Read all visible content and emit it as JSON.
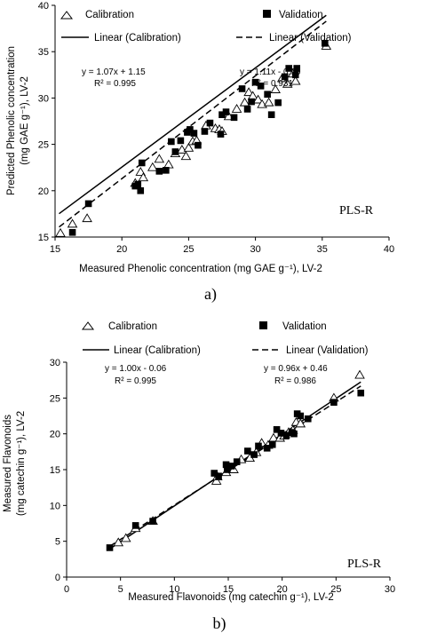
{
  "chart_data": [
    {
      "type": "scatter",
      "xlabel": "Measured Phenolic concentration (mg GAE g⁻¹), LV-2",
      "ylabel_line1": "Predicted Phenolic concentration",
      "ylabel_line2": "(mg GAE g⁻¹), LV-2",
      "xlim": [
        15,
        40
      ],
      "ylim": [
        15,
        40
      ],
      "xticks": [
        "15",
        "20",
        "25",
        "30",
        "35",
        "40"
      ],
      "yticks": [
        "15",
        "20",
        "25",
        "30",
        "35",
        "40"
      ],
      "legend": {
        "calibration": "Calibration",
        "validation": "Validation",
        "linear_calibration": "Linear (Calibration)",
        "linear_validation": "Linear (Validation)"
      },
      "equations": {
        "calibration_eq": "y = 1.07x + 1.15",
        "calibration_r2": "R² = 0.995",
        "validation_eq": "y = 1.11x - 0.90",
        "validation_r2": "R² = 0.931"
      },
      "method_label": "PLS-R",
      "caption": "a)",
      "fits": {
        "calibration": {
          "slope": 1.07,
          "intercept": 1.15,
          "x_range": [
            15.3,
            35.3
          ]
        },
        "validation": {
          "slope": 1.11,
          "intercept": -0.9,
          "x_range": [
            15.3,
            35.3
          ]
        }
      },
      "series": [
        {
          "name": "Calibration",
          "marker": "open-triangle",
          "points": [
            [
              15.4,
              15.4
            ],
            [
              16.3,
              16.4
            ],
            [
              17.4,
              17.0
            ],
            [
              21.0,
              20.8
            ],
            [
              21.4,
              22.0
            ],
            [
              21.6,
              21.4
            ],
            [
              22.3,
              22.5
            ],
            [
              22.8,
              23.4
            ],
            [
              23.5,
              22.8
            ],
            [
              24.0,
              24.0
            ],
            [
              24.5,
              24.4
            ],
            [
              24.8,
              23.7
            ],
            [
              25.0,
              24.6
            ],
            [
              25.3,
              25.3
            ],
            [
              25.6,
              25.4
            ],
            [
              26.3,
              27.0
            ],
            [
              27.0,
              26.7
            ],
            [
              27.3,
              26.6
            ],
            [
              27.5,
              26.4
            ],
            [
              28.0,
              28.0
            ],
            [
              28.6,
              28.8
            ],
            [
              29.2,
              29.5
            ],
            [
              29.5,
              30.6
            ],
            [
              29.8,
              30.2
            ],
            [
              30.2,
              29.8
            ],
            [
              30.5,
              29.3
            ],
            [
              31.0,
              29.5
            ],
            [
              31.5,
              30.9
            ],
            [
              32.0,
              32.1
            ],
            [
              32.4,
              31.5
            ],
            [
              32.8,
              32.6
            ],
            [
              33.0,
              31.8
            ],
            [
              35.3,
              35.6
            ]
          ]
        },
        {
          "name": "Validation",
          "marker": "filled-square",
          "points": [
            [
              16.3,
              15.5
            ],
            [
              17.5,
              18.6
            ],
            [
              21.0,
              20.5
            ],
            [
              21.2,
              20.7
            ],
            [
              21.4,
              20.0
            ],
            [
              21.5,
              23.0
            ],
            [
              22.8,
              22.1
            ],
            [
              23.3,
              22.2
            ],
            [
              23.7,
              25.3
            ],
            [
              24.0,
              24.2
            ],
            [
              24.4,
              25.4
            ],
            [
              24.9,
              26.3
            ],
            [
              25.1,
              26.6
            ],
            [
              25.4,
              26.2
            ],
            [
              25.7,
              24.9
            ],
            [
              26.2,
              26.4
            ],
            [
              26.6,
              27.3
            ],
            [
              27.4,
              26.1
            ],
            [
              27.5,
              28.2
            ],
            [
              27.8,
              28.5
            ],
            [
              28.4,
              27.9
            ],
            [
              29.0,
              31.0
            ],
            [
              29.4,
              28.8
            ],
            [
              29.7,
              29.6
            ],
            [
              30.0,
              31.7
            ],
            [
              30.4,
              31.3
            ],
            [
              30.9,
              30.4
            ],
            [
              31.2,
              28.2
            ],
            [
              31.7,
              29.5
            ],
            [
              32.2,
              32.3
            ],
            [
              32.5,
              33.2
            ],
            [
              33.0,
              32.5
            ],
            [
              33.1,
              33.2
            ],
            [
              35.2,
              35.9
            ]
          ]
        }
      ]
    },
    {
      "type": "scatter",
      "xlabel": "Measured Flavonoids (mg catechin g⁻¹), LV-2",
      "ylabel_line1": "Measured Flavonoids",
      "ylabel_line2": "(mg catechin g⁻¹), LV-2",
      "xlim": [
        0,
        30
      ],
      "ylim": [
        0,
        30
      ],
      "xticks": [
        "0",
        "5",
        "10",
        "15",
        "20",
        "25",
        "30"
      ],
      "yticks": [
        "0",
        "5",
        "10",
        "15",
        "20",
        "25",
        "30"
      ],
      "legend": {
        "calibration": "Calibration",
        "validation": "Validation",
        "linear_calibration": "Linear (Calibration)",
        "linear_validation": "Linear (Validation)"
      },
      "equations": {
        "calibration_eq": "y = 1.00x - 0.06",
        "calibration_r2": "R² = 0.995",
        "validation_eq": "y = 0.96x + 0.46",
        "validation_r2": "R² = 0.986"
      },
      "method_label": "PLS-R",
      "caption": "b)",
      "fits": {
        "calibration": {
          "slope": 1.0,
          "intercept": -0.06,
          "x_range": [
            4.0,
            27.3
          ]
        },
        "validation": {
          "slope": 0.96,
          "intercept": 0.46,
          "x_range": [
            4.0,
            27.3
          ]
        }
      },
      "series": [
        {
          "name": "Calibration",
          "marker": "open-triangle",
          "points": [
            [
              4.8,
              4.8
            ],
            [
              5.5,
              5.4
            ],
            [
              6.4,
              6.8
            ],
            [
              8.0,
              7.8
            ],
            [
              13.9,
              13.4
            ],
            [
              14.0,
              14.0
            ],
            [
              14.8,
              14.6
            ],
            [
              15.5,
              15.0
            ],
            [
              16.2,
              16.4
            ],
            [
              17.0,
              16.6
            ],
            [
              17.6,
              17.4
            ],
            [
              18.1,
              18.7
            ],
            [
              18.7,
              18.4
            ],
            [
              19.2,
              19.4
            ],
            [
              19.8,
              19.4
            ],
            [
              20.2,
              19.7
            ],
            [
              20.6,
              20.2
            ],
            [
              21.0,
              20.5
            ],
            [
              21.3,
              21.6
            ],
            [
              21.7,
              21.4
            ],
            [
              24.8,
              25.0
            ],
            [
              27.2,
              28.2
            ]
          ]
        },
        {
          "name": "Validation",
          "marker": "filled-square",
          "points": [
            [
              4.0,
              4.1
            ],
            [
              6.4,
              7.2
            ],
            [
              8.0,
              7.8
            ],
            [
              13.7,
              14.5
            ],
            [
              14.1,
              14.1
            ],
            [
              14.8,
              15.7
            ],
            [
              14.9,
              15.0
            ],
            [
              15.3,
              15.5
            ],
            [
              15.8,
              16.1
            ],
            [
              16.8,
              17.6
            ],
            [
              17.4,
              17.1
            ],
            [
              17.8,
              18.3
            ],
            [
              18.6,
              18.0
            ],
            [
              19.1,
              18.5
            ],
            [
              19.5,
              20.6
            ],
            [
              19.9,
              20.1
            ],
            [
              20.4,
              19.8
            ],
            [
              20.9,
              20.2
            ],
            [
              21.1,
              20.0
            ],
            [
              21.4,
              22.8
            ],
            [
              21.7,
              22.5
            ],
            [
              22.4,
              22.1
            ],
            [
              24.8,
              24.4
            ],
            [
              27.3,
              25.7
            ]
          ]
        }
      ]
    }
  ]
}
